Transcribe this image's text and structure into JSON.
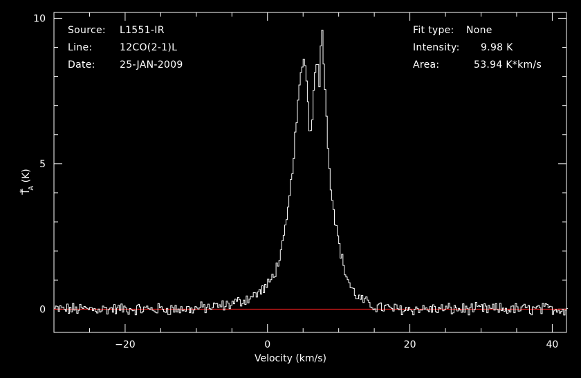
{
  "annotations": {
    "left": [
      {
        "key": "Source:",
        "value": "L1551-IR"
      },
      {
        "key": "Line:",
        "value": "12CO(2-1)L"
      },
      {
        "key": "Date:",
        "value": "25-JAN-2009"
      }
    ],
    "right": [
      {
        "key": "Fit type:",
        "value": "None"
      },
      {
        "key": "Intensity:",
        "value": "9.98 K"
      },
      {
        "key": "Area:",
        "value": "53.94 K*km/s"
      }
    ]
  },
  "chart_data": {
    "type": "line",
    "xlabel": "Velocity (km/s)",
    "ylabel_main": "T",
    "ylabel_sup": "*",
    "ylabel_sub": "A",
    "ylabel_unit": " (K)",
    "xlim": [
      -30,
      42
    ],
    "ylim": [
      -0.8,
      10.2
    ],
    "xticks": [
      -20,
      0,
      20,
      40
    ],
    "yticks": [
      0,
      5,
      10
    ],
    "style": "steps",
    "line_color": "#ffffff",
    "baseline": {
      "y": 0,
      "color": "#ff2020"
    },
    "series": [
      {
        "x": [
          -10,
          -8,
          -6,
          -4,
          -3,
          -2,
          -1,
          0,
          0.5,
          1,
          1.5,
          2,
          2.5,
          3,
          3.5,
          4,
          4.5,
          5,
          5.3,
          5.6,
          6,
          6.3,
          6.6,
          7,
          7.3,
          7.6,
          8,
          8.3,
          8.6,
          9,
          9.5,
          10,
          10.5,
          11,
          11.5,
          12,
          13,
          14,
          15,
          16,
          17,
          18
        ],
        "values": [
          0.03,
          0.06,
          0.12,
          0.25,
          0.35,
          0.45,
          0.6,
          0.8,
          1.0,
          1.25,
          1.6,
          2.0,
          2.7,
          3.6,
          4.8,
          6.2,
          7.6,
          8.6,
          8.5,
          7.5,
          5.9,
          6.5,
          8.2,
          8.7,
          7.6,
          9.98,
          8.2,
          6.5,
          5.2,
          4.0,
          3.1,
          2.3,
          1.7,
          1.2,
          0.9,
          0.6,
          0.35,
          0.2,
          0.1,
          0.06,
          0.03,
          0.0
        ]
      }
    ]
  }
}
